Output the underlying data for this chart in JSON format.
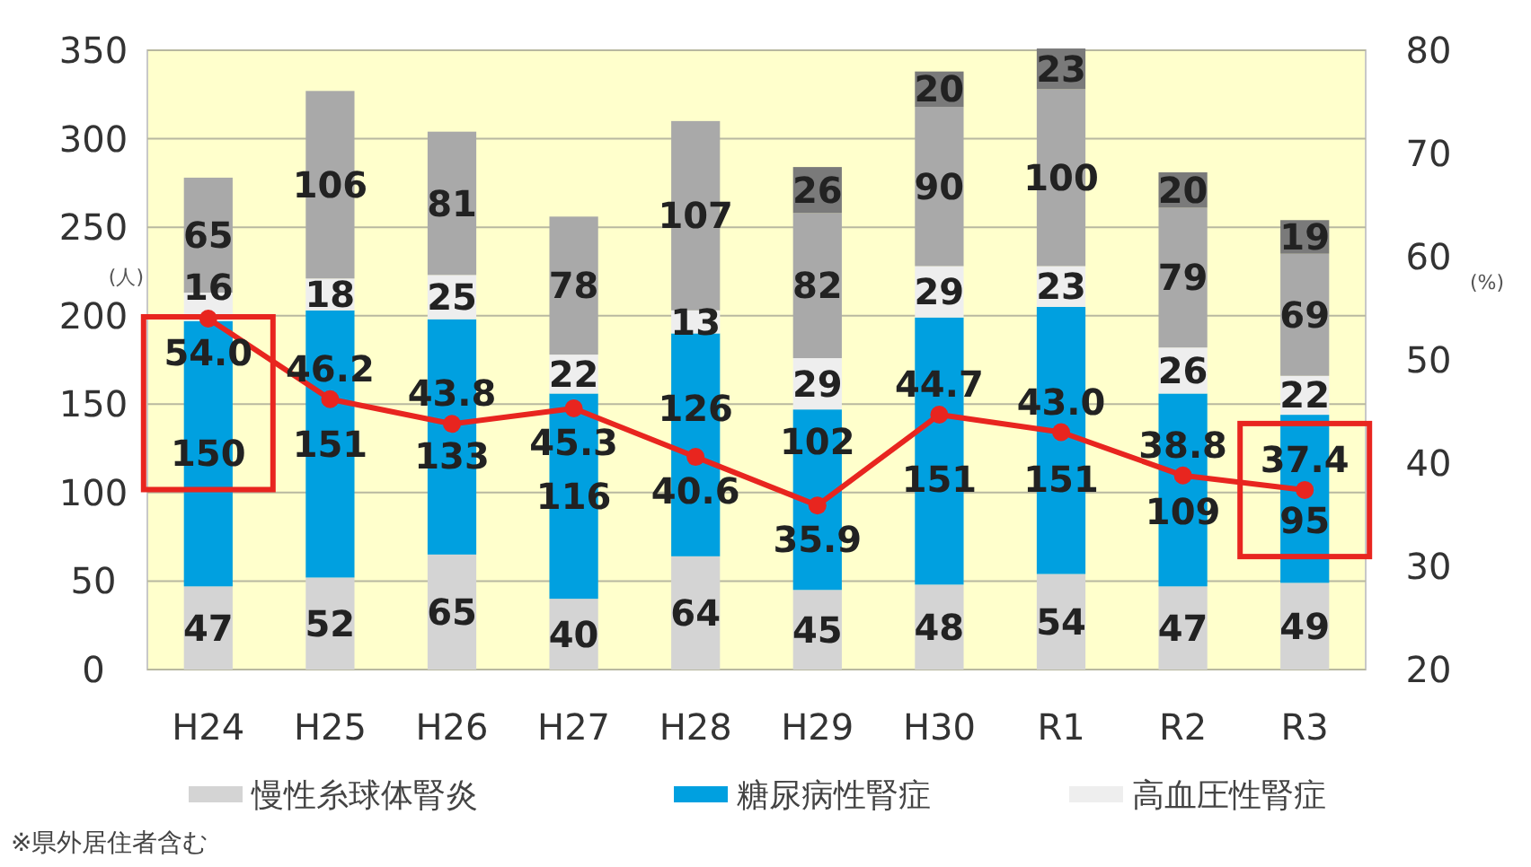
{
  "chart_data": {
    "type": "bar",
    "stacked": true,
    "categories": [
      "H24",
      "H25",
      "H26",
      "H27",
      "H28",
      "H29",
      "H30",
      "R1",
      "R2",
      "R3"
    ],
    "series": [
      {
        "name": "慢性糸球体腎炎",
        "color": "#d4d4d4",
        "values": [
          47,
          52,
          65,
          40,
          64,
          45,
          48,
          54,
          47,
          49
        ]
      },
      {
        "name": "糖尿病性腎症",
        "color": "#00a0e0",
        "values": [
          150,
          151,
          133,
          116,
          126,
          102,
          151,
          151,
          109,
          95
        ]
      },
      {
        "name": "高血圧性腎症",
        "color": "#eeeeee",
        "values": [
          16,
          18,
          25,
          22,
          13,
          29,
          29,
          23,
          26,
          22
        ]
      },
      {
        "color": "#a9a9a9",
        "values": [
          65,
          106,
          81,
          78,
          107,
          82,
          90,
          100,
          79,
          69
        ]
      },
      {
        "color": "#7a7a7a",
        "values": [
          null,
          null,
          null,
          null,
          null,
          26,
          20,
          23,
          20,
          19
        ]
      },
      {
        "type": "line",
        "axis": "y2",
        "color": "#e8251f",
        "marker": "circle",
        "values": [
          54.0,
          46.2,
          43.8,
          45.3,
          40.6,
          35.9,
          44.7,
          43.0,
          38.8,
          37.4
        ],
        "value_labels": [
          "54.0",
          "46.2",
          "43.8",
          "45.3",
          "40.6",
          "35.9",
          "44.7",
          "43.0",
          "38.8",
          "37.4"
        ]
      }
    ],
    "ylim": [
      0,
      350
    ],
    "yticks": [
      0,
      50,
      100,
      150,
      200,
      250,
      300,
      350
    ],
    "y2lim": [
      20,
      80
    ],
    "y2ticks": [
      20,
      30,
      40,
      50,
      60,
      70,
      80
    ],
    "ylabel": "(人)",
    "y2label": "(%)",
    "data_labels": true,
    "grid": "y",
    "legend": "bottom",
    "annotations": [
      "※県外居住者含む"
    ]
  }
}
